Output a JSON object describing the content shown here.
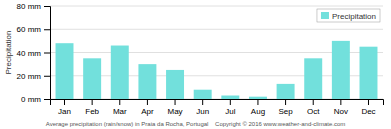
{
  "chart_data": {
    "type": "bar",
    "categories": [
      "Jan",
      "Feb",
      "Mar",
      "Apr",
      "May",
      "Jun",
      "Jul",
      "Aug",
      "Sep",
      "Oct",
      "Nov",
      "Dec"
    ],
    "series": [
      {
        "name": "Precipitation",
        "color": "#72E0DC",
        "values": [
          48,
          35,
          46,
          30,
          25,
          8,
          3,
          2,
          13,
          35,
          50,
          45
        ]
      }
    ],
    "y_label": "Precipitation",
    "ylim": [
      0,
      80
    ],
    "yticks": [
      {
        "value": 0,
        "label": "0 mm"
      },
      {
        "value": 20,
        "label": "20 mm"
      },
      {
        "value": 40,
        "label": "40 mm"
      },
      {
        "value": 60,
        "label": "60 mm"
      },
      {
        "value": 80,
        "label": "80 mm"
      }
    ],
    "grid": true,
    "legend": "upper right",
    "annotations": [
      "Average precipitation (rain/snow) in Praia da Rocha, Portugal    Copyright © 2016 www.weather-and-climate.com"
    ]
  }
}
